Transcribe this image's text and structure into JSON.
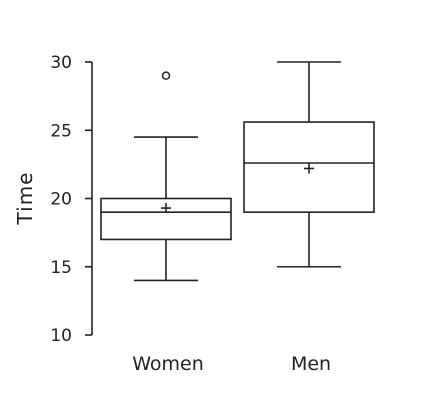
{
  "chart_data": {
    "type": "box",
    "title": "",
    "xlabel": "",
    "ylabel": "Time",
    "ylim": [
      10,
      30
    ],
    "yticks": [
      10,
      15,
      20,
      25,
      30
    ],
    "grid": false,
    "categories": [
      "Women",
      "Men"
    ],
    "boxes": [
      {
        "category": "Women",
        "min": 14,
        "q1": 17,
        "median": 19,
        "q3": 20,
        "max": 24.5,
        "mean": 19.3,
        "outliers": [
          29
        ]
      },
      {
        "category": "Men",
        "min": 15,
        "q1": 19,
        "median": 22.6,
        "q3": 25.6,
        "max": 30,
        "mean": 22.2,
        "outliers": []
      }
    ]
  },
  "colors": {
    "stroke": "#222222",
    "background": "#ffffff"
  }
}
